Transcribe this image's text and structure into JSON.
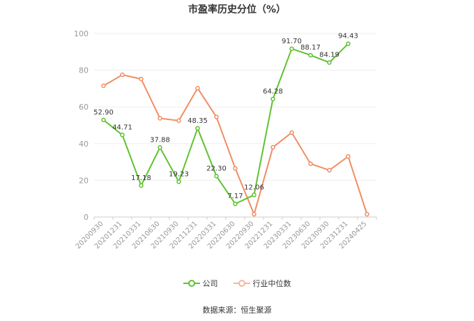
{
  "chart_data": {
    "type": "line",
    "title": "市盈率历史分位（%）",
    "categories": [
      "20200930",
      "20201231",
      "20210331",
      "20210630",
      "20210930",
      "20211231",
      "20220331",
      "20220630",
      "20220930",
      "20221231",
      "20230331",
      "20230630",
      "20230930",
      "20231231",
      "20240425"
    ],
    "series": [
      {
        "name": "公司",
        "color": "#5ec22f",
        "values": [
          52.9,
          44.71,
          17.18,
          37.88,
          19.23,
          48.35,
          22.3,
          7.17,
          12.06,
          64.28,
          91.7,
          88.17,
          84.19,
          94.43,
          null
        ],
        "labels": [
          "52.90",
          "44.71",
          "17.18",
          "37.88",
          "19.23",
          "48.35",
          "22.30",
          "7.17",
          "12.06",
          "64.28",
          "91.70",
          "88.17",
          "84.19",
          "94.43",
          ""
        ]
      },
      {
        "name": "行业中位数",
        "color": "#f28c62",
        "values": [
          71.5,
          77.5,
          75.2,
          53.8,
          52.5,
          70.2,
          54.5,
          26.5,
          1.5,
          38.0,
          46.0,
          29.0,
          25.5,
          33.0,
          1.5
        ]
      }
    ],
    "ylim": [
      0,
      100
    ],
    "yticks": [
      0,
      20,
      40,
      60,
      80,
      100
    ],
    "grid": true,
    "legend": "bottom-center"
  },
  "source": "数据来源：恒生聚源"
}
